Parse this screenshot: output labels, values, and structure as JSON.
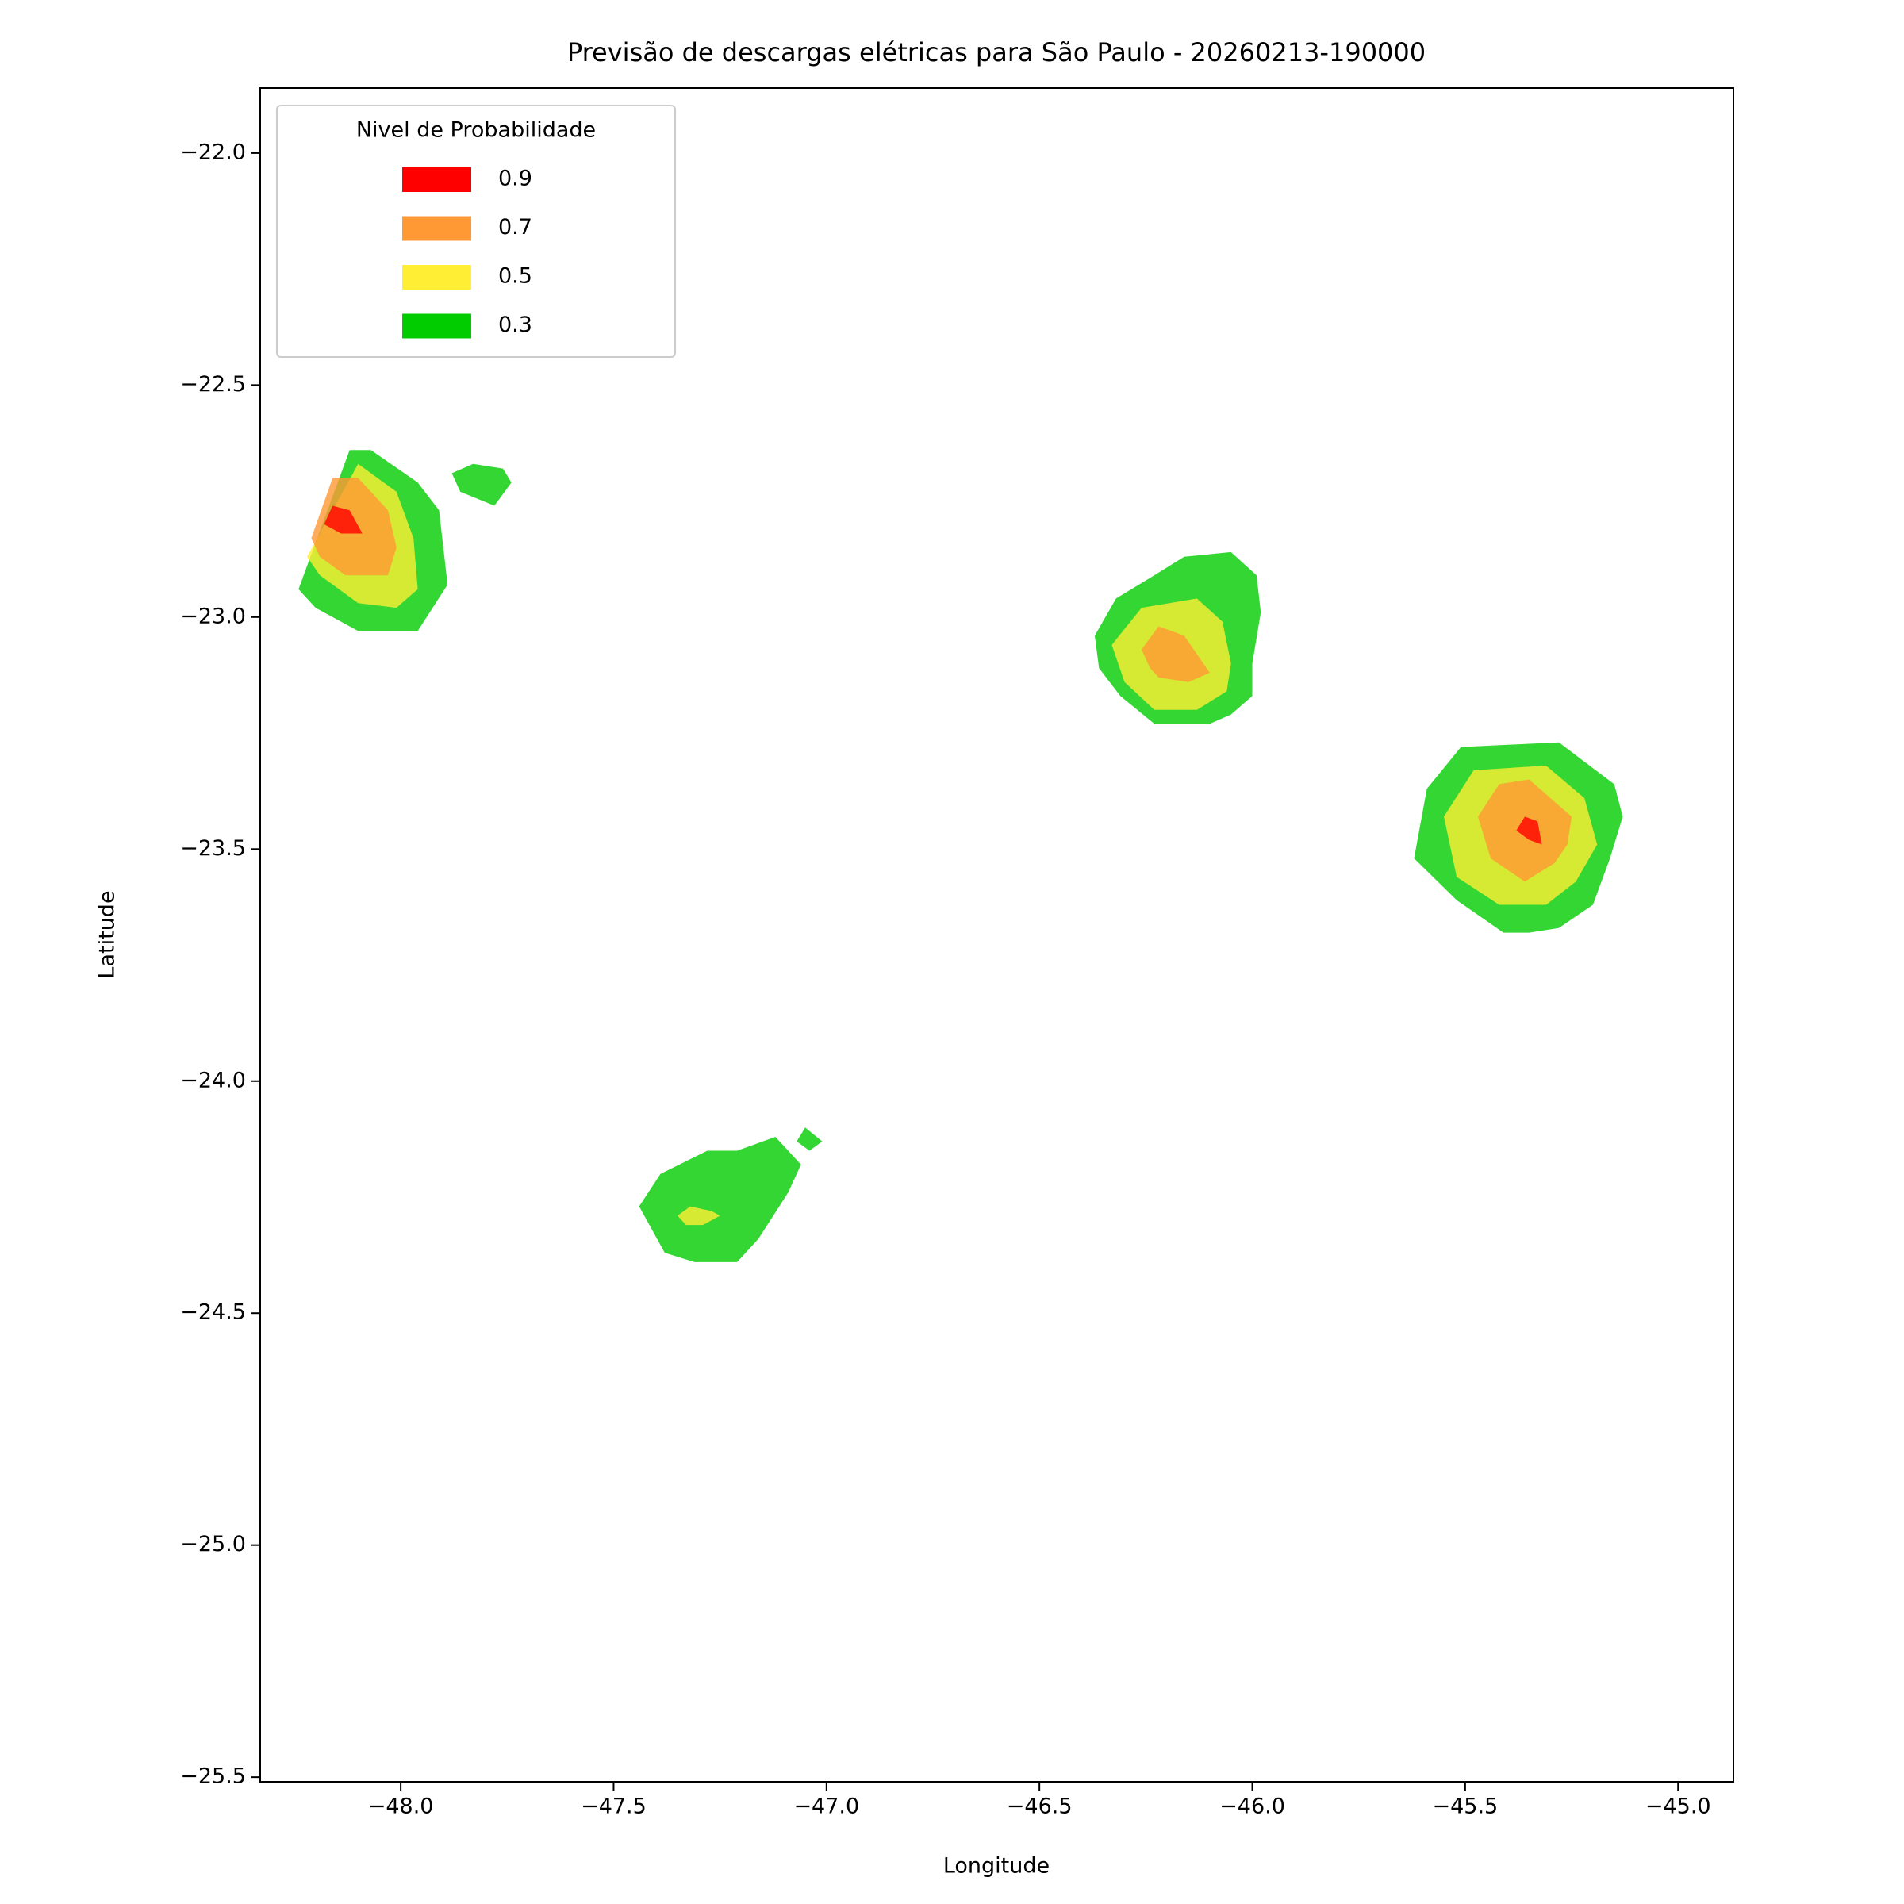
{
  "chart_data": {
    "type": "contourf",
    "title": "Previsão de descargas elétricas para São Paulo - 20260213-190000",
    "xlabel": "Longitude",
    "ylabel": "Latitude",
    "xlim": [
      -48.33,
      -44.87
    ],
    "ylim": [
      -25.51,
      -21.86
    ],
    "xticks": [
      {
        "value": -48,
        "label": "−48.0"
      },
      {
        "value": -47.5,
        "label": "−47.5"
      },
      {
        "value": -47,
        "label": "−47.0"
      },
      {
        "value": -46.5,
        "label": "−46.5"
      },
      {
        "value": -46,
        "label": "−46.0"
      },
      {
        "value": -45.5,
        "label": "−45.5"
      },
      {
        "value": -45,
        "label": "−45.0"
      }
    ],
    "yticks": [
      {
        "value": -22,
        "label": "−22.0"
      },
      {
        "value": -22.5,
        "label": "−22.5"
      },
      {
        "value": -23,
        "label": "−23.0"
      },
      {
        "value": -23.5,
        "label": "−23.5"
      },
      {
        "value": -24,
        "label": "−24.0"
      },
      {
        "value": -24.5,
        "label": "−24.5"
      },
      {
        "value": -25,
        "label": "−25.0"
      },
      {
        "value": -25.5,
        "label": "−25.5"
      }
    ],
    "legend": {
      "title": "Nivel de Probabilidade",
      "location": "upper left"
    },
    "alpha": 0.8,
    "series": [
      {
        "name": "0.9",
        "color": "#ff0000",
        "regions": [
          {
            "x": [
              -48.18,
              -48.16,
              -48.12,
              -48.09,
              -48.14
            ],
            "y": [
              -22.8,
              -22.76,
              -22.77,
              -22.82,
              -22.82
            ]
          },
          {
            "x": [
              -45.38,
              -45.36,
              -45.33,
              -45.32,
              -45.35
            ],
            "y": [
              -23.46,
              -23.43,
              -23.44,
              -23.49,
              -23.48
            ]
          }
        ]
      },
      {
        "name": "0.7",
        "color": "#ff9933",
        "regions": [
          {
            "x": [
              -48.21,
              -48.16,
              -48.1,
              -48.03,
              -48.01,
              -48.03,
              -48.13,
              -48.19
            ],
            "y": [
              -22.83,
              -22.7,
              -22.7,
              -22.77,
              -22.85,
              -22.91,
              -22.91,
              -22.87
            ]
          },
          {
            "x": [
              -46.26,
              -46.22,
              -46.16,
              -46.1,
              -46.15,
              -46.22,
              -46.24
            ],
            "y": [
              -23.07,
              -23.02,
              -23.04,
              -23.12,
              -23.14,
              -23.13,
              -23.11
            ]
          },
          {
            "x": [
              -45.47,
              -45.42,
              -45.35,
              -45.25,
              -45.26,
              -45.29,
              -45.36,
              -45.44
            ],
            "y": [
              -23.43,
              -23.36,
              -23.35,
              -23.43,
              -23.49,
              -23.53,
              -23.57,
              -23.52
            ]
          }
        ]
      },
      {
        "name": "0.5",
        "color": "#ffee33",
        "regions": [
          {
            "x": [
              -48.22,
              -48.1,
              -48.01,
              -47.97,
              -47.96,
              -48.01,
              -48.1,
              -48.19
            ],
            "y": [
              -22.87,
              -22.67,
              -22.73,
              -22.83,
              -22.94,
              -22.98,
              -22.97,
              -22.91
            ]
          },
          {
            "x": [
              -46.33,
              -46.26,
              -46.13,
              -46.07,
              -46.05,
              -46.06,
              -46.13,
              -46.23,
              -46.3
            ],
            "y": [
              -23.06,
              -22.98,
              -22.96,
              -23.01,
              -23.1,
              -23.16,
              -23.2,
              -23.2,
              -23.14
            ]
          },
          {
            "x": [
              -45.55,
              -45.48,
              -45.31,
              -45.22,
              -45.19,
              -45.24,
              -45.31,
              -45.42,
              -45.52
            ],
            "y": [
              -23.43,
              -23.33,
              -23.32,
              -23.39,
              -23.49,
              -23.57,
              -23.62,
              -23.62,
              -23.56
            ]
          },
          {
            "x": [
              -47.35,
              -47.32,
              -47.27,
              -47.25,
              -47.29,
              -47.33
            ],
            "y": [
              -24.29,
              -24.27,
              -24.28,
              -24.29,
              -24.31,
              -24.31
            ]
          }
        ]
      },
      {
        "name": "0.3",
        "color": "#00cc00",
        "regions": [
          {
            "x": [
              -48.24,
              -48.12,
              -48.07,
              -47.96,
              -47.91,
              -47.89,
              -47.96,
              -48.1,
              -48.2
            ],
            "y": [
              -22.94,
              -22.64,
              -22.64,
              -22.71,
              -22.77,
              -22.93,
              -23.03,
              -23.03,
              -22.98
            ]
          },
          {
            "x": [
              -47.88,
              -47.83,
              -47.76,
              -47.74,
              -47.78,
              -47.86
            ],
            "y": [
              -22.69,
              -22.67,
              -22.68,
              -22.71,
              -22.76,
              -22.73
            ]
          },
          {
            "x": [
              -46.37,
              -46.32,
              -46.23,
              -46.16,
              -46.05,
              -45.99,
              -45.98,
              -46.0,
              -46.0,
              -46.05,
              -46.1,
              -46.23,
              -46.31,
              -46.36
            ],
            "y": [
              -23.04,
              -22.96,
              -22.91,
              -22.87,
              -22.86,
              -22.91,
              -22.99,
              -23.1,
              -23.17,
              -23.21,
              -23.23,
              -23.23,
              -23.17,
              -23.11
            ]
          },
          {
            "x": [
              -45.62,
              -45.59,
              -45.51,
              -45.28,
              -45.15,
              -45.13,
              -45.16,
              -45.2,
              -45.28,
              -45.35,
              -45.41,
              -45.52
            ],
            "y": [
              -23.52,
              -23.37,
              -23.28,
              -23.27,
              -23.36,
              -23.43,
              -23.52,
              -23.62,
              -23.67,
              -23.68,
              -23.68,
              -23.61
            ]
          },
          {
            "x": [
              -47.44,
              -47.39,
              -47.28,
              -47.21,
              -47.12,
              -47.06,
              -47.09,
              -47.16,
              -47.21,
              -47.31,
              -47.38,
              -47.41
            ],
            "y": [
              -24.27,
              -24.2,
              -24.15,
              -24.15,
              -24.12,
              -24.18,
              -24.24,
              -24.34,
              -24.39,
              -24.39,
              -24.37,
              -24.32
            ]
          },
          {
            "x": [
              -47.07,
              -47.05,
              -47.01,
              -47.04
            ],
            "y": [
              -24.13,
              -24.1,
              -24.13,
              -24.15
            ]
          }
        ]
      }
    ]
  }
}
